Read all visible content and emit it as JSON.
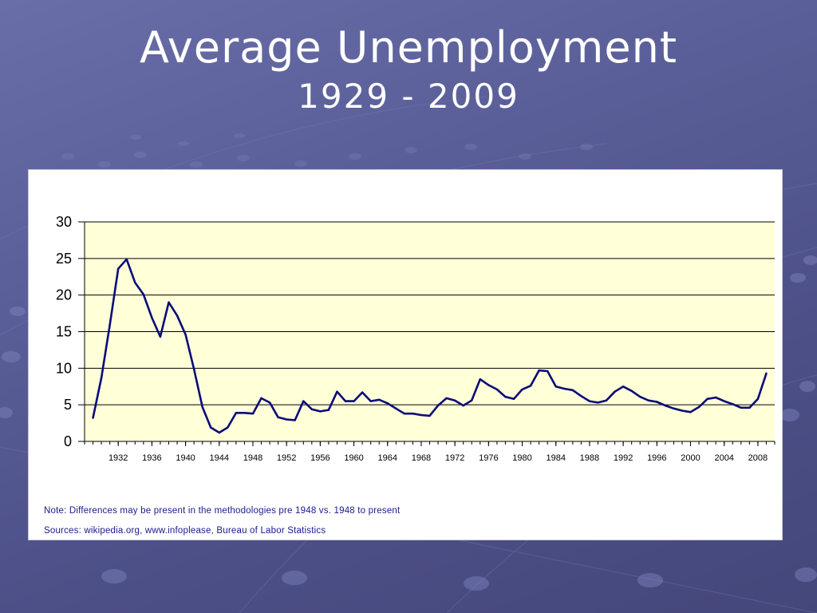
{
  "slide": {
    "title": "Average Unemployment",
    "subtitle": "1929 - 2009"
  },
  "colors": {
    "background": "#565a94",
    "plot_area": "#ffffd8",
    "line": "#0a0a7a",
    "note_text": "#1a1a8c"
  },
  "notes": {
    "note": "Note: Differences may be present in the methodologies pre 1948 vs. 1948 to present",
    "sources": "Sources: wikipedia.org, www.infoplease, Bureau of Labor Statistics"
  },
  "chart_data": {
    "type": "line",
    "title": "",
    "xlabel": "",
    "ylabel": "",
    "ylim": [
      0,
      30
    ],
    "yticks": [
      0,
      5,
      10,
      15,
      20,
      25,
      30
    ],
    "xlim": [
      1928,
      2010
    ],
    "xticks": [
      1932,
      1936,
      1940,
      1944,
      1948,
      1952,
      1956,
      1960,
      1964,
      1968,
      1972,
      1976,
      1980,
      1984,
      1988,
      1992,
      1996,
      2000,
      2004,
      2008
    ],
    "grid": "horizontal",
    "legend": "none",
    "series": [
      {
        "x": [
          1929,
          1930,
          1931,
          1932,
          1933,
          1934,
          1935,
          1936,
          1937,
          1938,
          1939,
          1940,
          1941,
          1942,
          1943,
          1944,
          1945,
          1946,
          1947,
          1948,
          1949,
          1950,
          1951,
          1952,
          1953,
          1954,
          1955,
          1956,
          1957,
          1958,
          1959,
          1960,
          1961,
          1962,
          1963,
          1964,
          1965,
          1966,
          1967,
          1968,
          1969,
          1970,
          1971,
          1972,
          1973,
          1974,
          1975,
          1976,
          1977,
          1978,
          1979,
          1980,
          1981,
          1982,
          1983,
          1984,
          1985,
          1986,
          1987,
          1988,
          1989,
          1990,
          1991,
          1992,
          1993,
          1994,
          1995,
          1996,
          1997,
          1998,
          1999,
          2000,
          2001,
          2002,
          2003,
          2004,
          2005,
          2006,
          2007,
          2008,
          2009
        ],
        "values": [
          3.2,
          8.7,
          15.9,
          23.6,
          24.9,
          21.7,
          20.1,
          16.9,
          14.3,
          19.0,
          17.2,
          14.6,
          9.9,
          4.7,
          1.9,
          1.2,
          1.9,
          3.9,
          3.9,
          3.8,
          5.9,
          5.3,
          3.3,
          3.0,
          2.9,
          5.5,
          4.4,
          4.1,
          4.3,
          6.8,
          5.5,
          5.5,
          6.7,
          5.5,
          5.7,
          5.2,
          4.5,
          3.8,
          3.8,
          3.6,
          3.5,
          4.9,
          5.9,
          5.6,
          4.9,
          5.6,
          8.5,
          7.7,
          7.1,
          6.1,
          5.8,
          7.1,
          7.6,
          9.7,
          9.6,
          7.5,
          7.2,
          7.0,
          6.2,
          5.5,
          5.3,
          5.6,
          6.8,
          7.5,
          6.9,
          6.1,
          5.6,
          5.4,
          4.9,
          4.5,
          4.2,
          4.0,
          4.7,
          5.8,
          6.0,
          5.5,
          5.1,
          4.6,
          4.6,
          5.8,
          9.3
        ]
      }
    ]
  }
}
